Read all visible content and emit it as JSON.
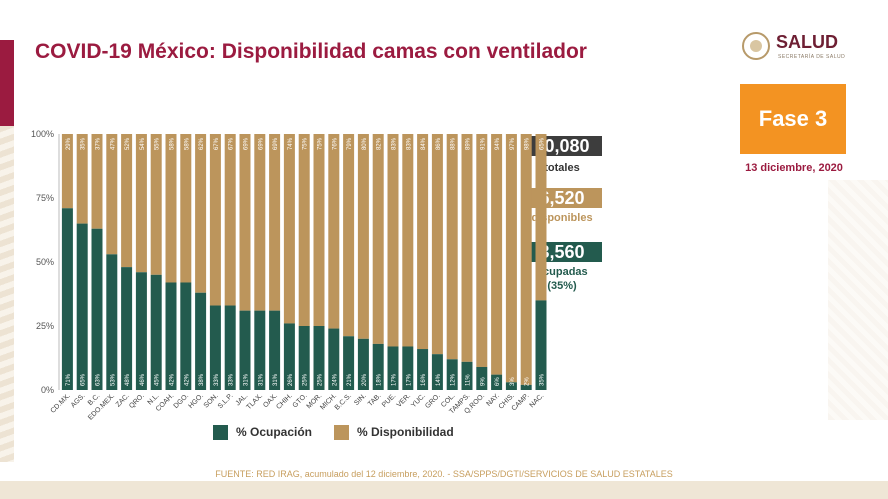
{
  "header": {
    "title": "COVID-19 México: Disponibilidad camas con ventilador",
    "logo_text": "SALUD",
    "logo_subtext": "SECRETARÍA DE SALUD"
  },
  "phase": {
    "label": "Fase 3",
    "date": "13 diciembre, 2020"
  },
  "stats": {
    "total_value": "10,080",
    "total_label": "totales",
    "available_value": "6,520",
    "available_label": "disponibles",
    "occupied_value": "3,560",
    "occupied_label": "ocupadas",
    "occupied_pct": "(35%)"
  },
  "legend": {
    "occupied": "% Ocupación",
    "available": "% Disponibilidad"
  },
  "footer": {
    "source": "FUENTE: RED IRAG, acumulado del 12 diciembre, 2020. -  SSA/SPPS/DGTI/SERVICIOS DE SALUD ESTATALES"
  },
  "colors": {
    "occupied": "#235b4e",
    "available": "#bc955c",
    "title": "#9b1b40",
    "phase": "#f39322",
    "total_box": "#3d3d3d"
  },
  "chart_data": {
    "type": "bar",
    "stacked": true,
    "categories": [
      "CD.MX.",
      "AGS.",
      "B.C.",
      "EDO.MEX.",
      "ZAC.",
      "QRO.",
      "N.L.",
      "COAH.",
      "DGO.",
      "HGO.",
      "SON.",
      "S.L.P.",
      "JAL.",
      "TLAX.",
      "OAX.",
      "CHIH.",
      "GTO.",
      "MOR.",
      "MICH.",
      "B.C.S.",
      "SIN.",
      "TAB.",
      "PUE.",
      "VER.",
      "YUC.",
      "GRO.",
      "COL.",
      "TAMPS.",
      "Q.ROO.",
      "NAY.",
      "CHIS.",
      "CAMP.",
      "NAC."
    ],
    "series": [
      {
        "name": "% Ocupación",
        "values": [
          71,
          65,
          63,
          53,
          48,
          46,
          45,
          42,
          42,
          38,
          33,
          33,
          31,
          31,
          31,
          26,
          25,
          25,
          24,
          21,
          20,
          18,
          17,
          17,
          16,
          14,
          12,
          11,
          9,
          6,
          3,
          2,
          35
        ]
      },
      {
        "name": "% Disponibilidad",
        "values": [
          29,
          35,
          37,
          47,
          52,
          54,
          55,
          58,
          58,
          62,
          67,
          67,
          69,
          69,
          69,
          74,
          75,
          75,
          76,
          79,
          80,
          82,
          83,
          83,
          84,
          86,
          88,
          89,
          91,
          94,
          97,
          98,
          65
        ]
      }
    ],
    "value_labels": {
      "occupied": [
        "71%",
        "65%",
        "63%",
        "53%",
        "48%",
        "46%",
        "45%",
        "42%",
        "42%",
        "38%",
        "33%",
        "33%",
        "31%",
        "31%",
        "31%",
        "26%",
        "25%",
        "25%",
        "24%",
        "21%",
        "20%",
        "18%",
        "17%",
        "17%",
        "16%",
        "14%",
        "12%",
        "11%",
        "9%",
        "6%",
        "3%",
        "2%",
        "35%"
      ],
      "available": [
        "29%",
        "35%",
        "37%",
        "47%",
        "52%",
        "54%",
        "55%",
        "58%",
        "58%",
        "62%",
        "67%",
        "67%",
        "69%",
        "69%",
        "69%",
        "74%",
        "75%",
        "75%",
        "76%",
        "79%",
        "80%",
        "82%",
        "83%",
        "83%",
        "84%",
        "86%",
        "88%",
        "89%",
        "91%",
        "94%",
        "97%",
        "98%",
        "65%"
      ]
    },
    "y_ticks": [
      "0%",
      "25%",
      "50%",
      "75%",
      "100%"
    ],
    "ylim": [
      0,
      100
    ],
    "grid": false,
    "legend_position": "bottom"
  }
}
